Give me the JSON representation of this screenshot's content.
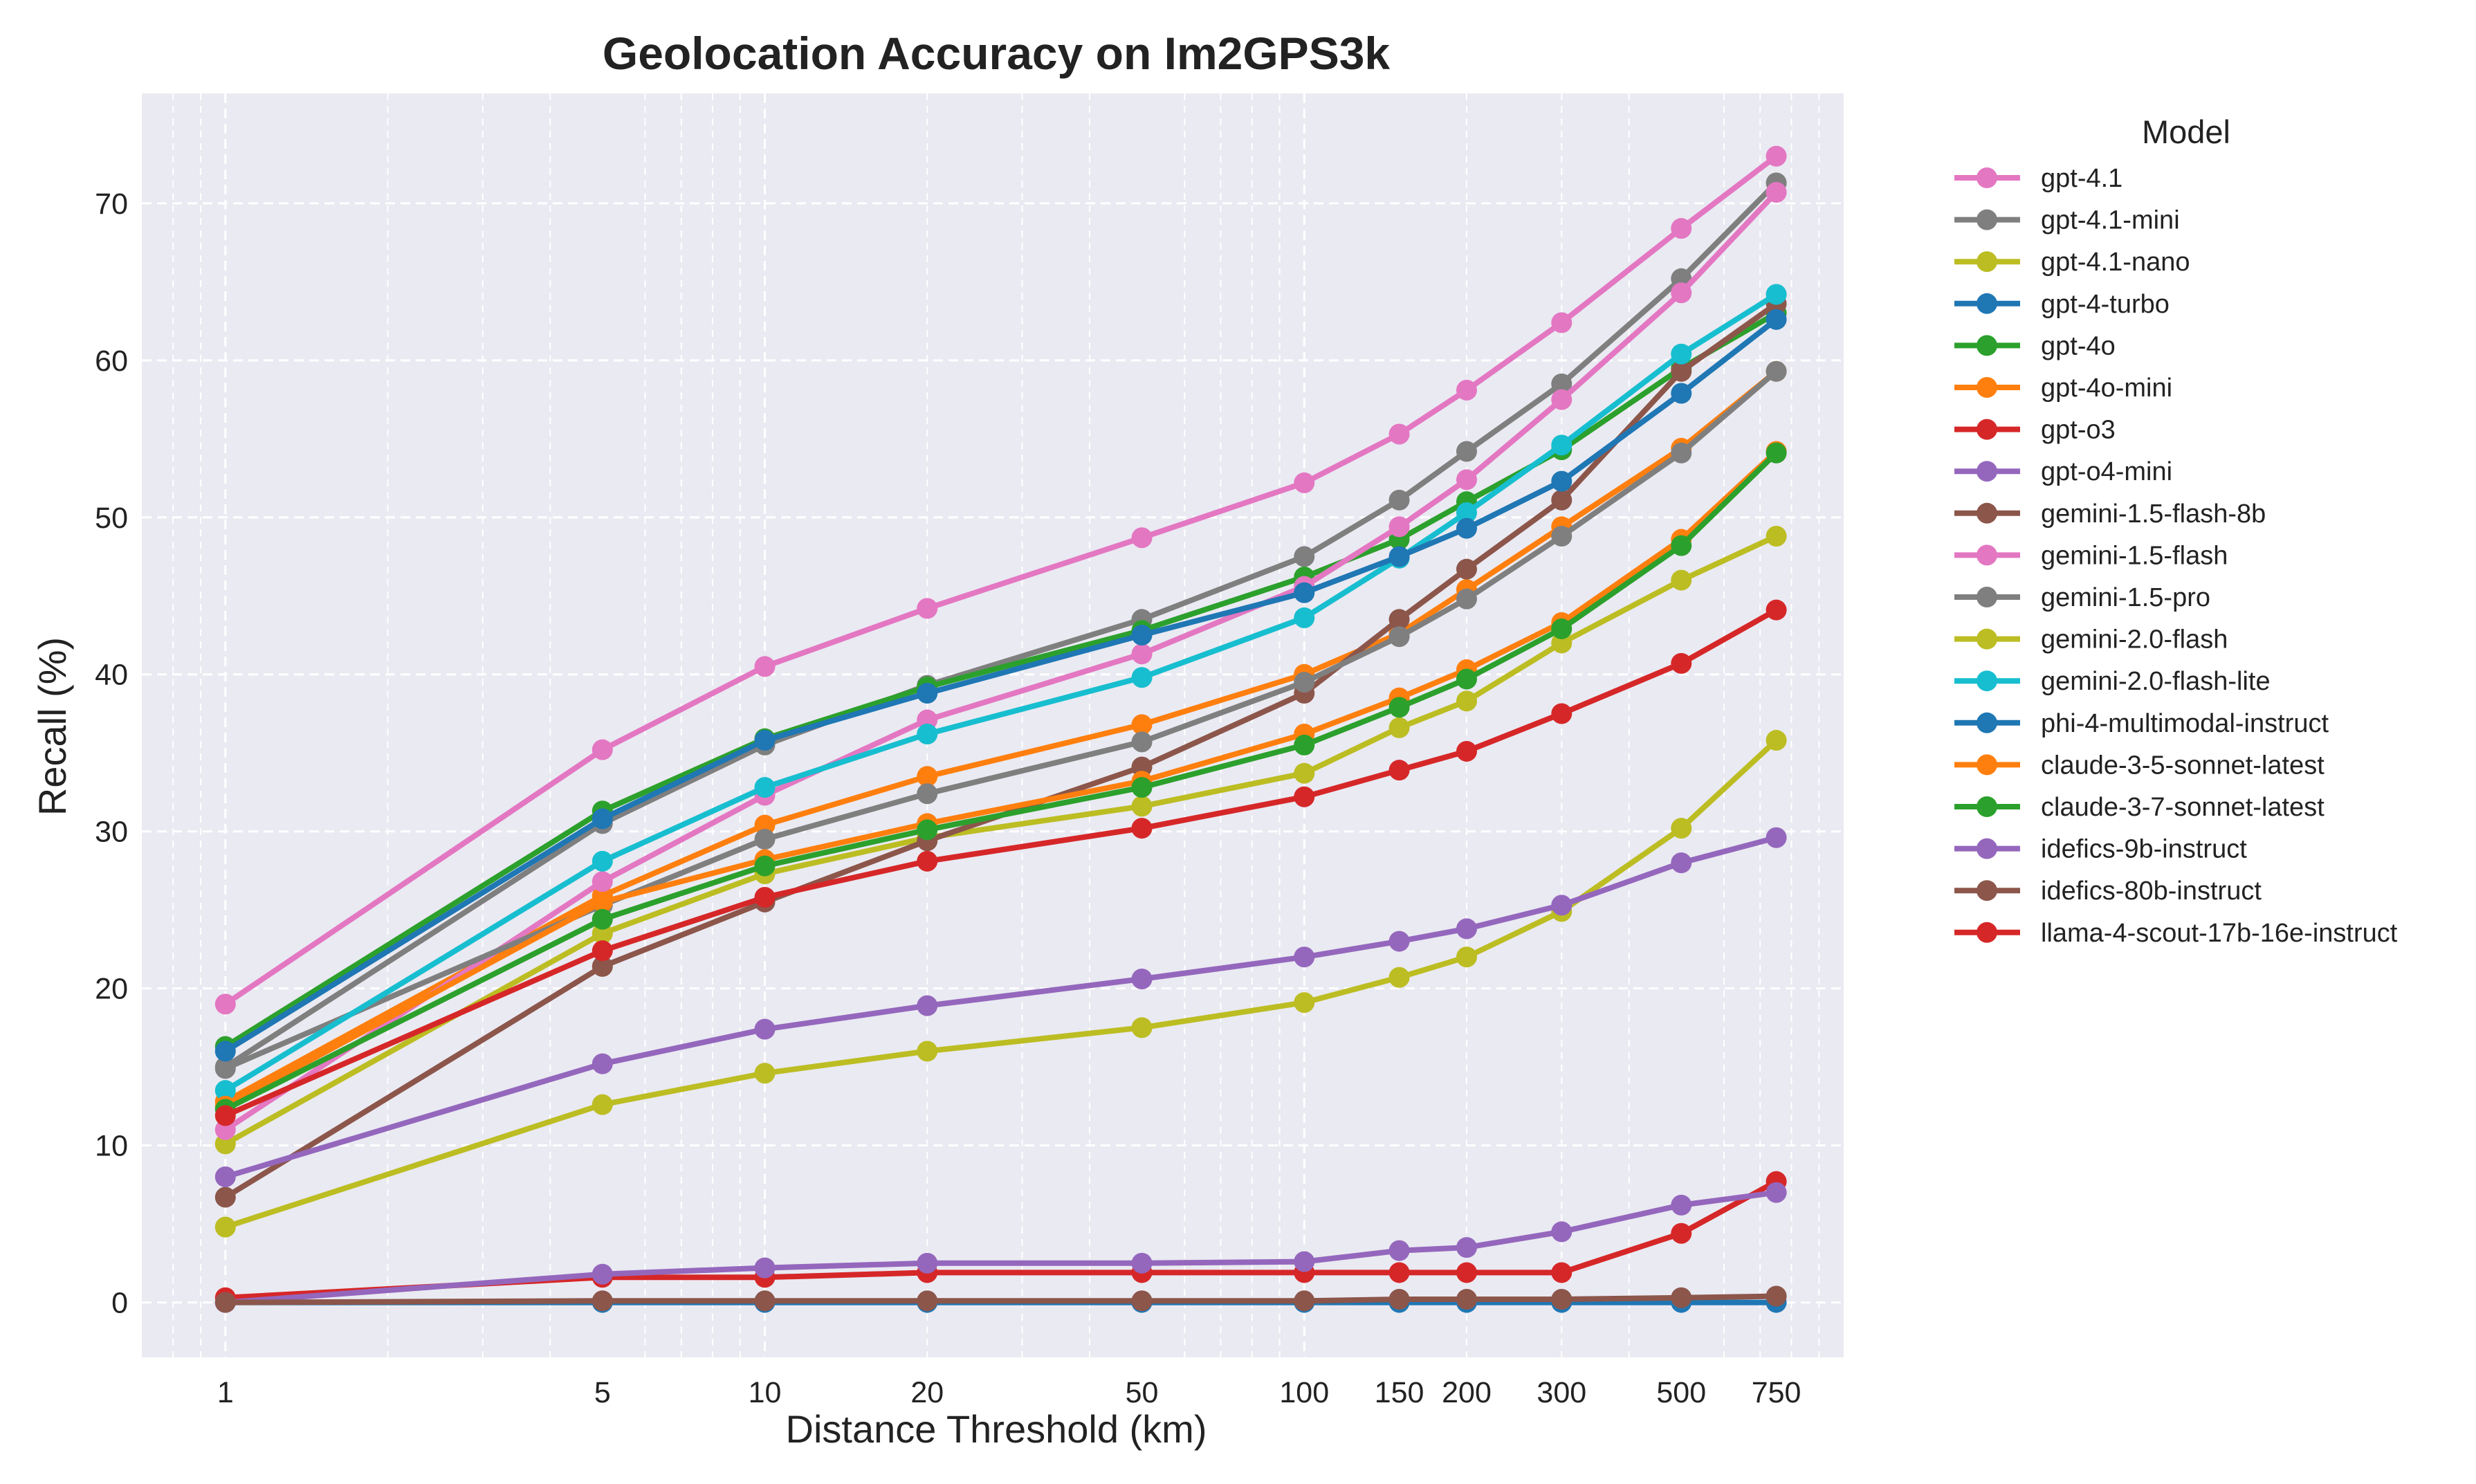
{
  "chart_data": {
    "type": "line",
    "title": "Geolocation Accuracy on Im2GPS3k",
    "xlabel": "Distance Threshold (km)",
    "ylabel": "Recall (%)",
    "x_scale": "log",
    "xlim": [
      0.7,
      1000
    ],
    "ylim": [
      -3.5,
      77
    ],
    "grid": true,
    "legend_title": "Model",
    "legend_position": "outside-right",
    "x": [
      1,
      5,
      10,
      20,
      50,
      100,
      150,
      200,
      300,
      500,
      750
    ],
    "x_tick_labels": [
      "1",
      "5",
      "10",
      "20",
      "50",
      "100",
      "150",
      "200",
      "300",
      "500",
      "750"
    ],
    "y_ticks": [
      0,
      10,
      20,
      30,
      40,
      50,
      60,
      70
    ],
    "y_tick_labels": [
      "0",
      "10",
      "20",
      "30",
      "40",
      "50",
      "60",
      "70"
    ],
    "series": [
      {
        "name": "gpt-4.1",
        "color": "#e377c2",
        "values": [
          19.0,
          35.2,
          40.5,
          44.2,
          48.7,
          52.2,
          55.3,
          58.1,
          62.4,
          68.4,
          73.0
        ]
      },
      {
        "name": "gpt-4.1-mini",
        "color": "#7f7f7f",
        "values": [
          15.0,
          30.5,
          35.5,
          39.3,
          43.5,
          47.5,
          51.1,
          54.2,
          58.5,
          65.2,
          71.3
        ]
      },
      {
        "name": "gpt-4.1-nano",
        "color": "#bcbd22",
        "values": [
          10.1,
          23.5,
          27.3,
          29.6,
          31.6,
          33.7,
          36.6,
          38.3,
          42.0,
          46.0,
          48.8
        ]
      },
      {
        "name": "gpt-4-turbo",
        "color": "#1f77b4",
        "values": [
          0.0,
          0.0,
          0.0,
          0.0,
          0.0,
          0.0,
          0.0,
          0.0,
          0.0,
          0.0,
          0.0
        ]
      },
      {
        "name": "gpt-4o",
        "color": "#2ca02c",
        "values": [
          16.3,
          31.3,
          35.9,
          39.2,
          42.8,
          46.2,
          48.6,
          51.0,
          54.3,
          59.5,
          63.0
        ]
      },
      {
        "name": "gpt-4o-mini",
        "color": "#ff7f0e",
        "values": [
          12.8,
          25.9,
          30.4,
          33.5,
          36.8,
          40.0,
          42.6,
          45.4,
          49.4,
          54.4,
          59.3
        ]
      },
      {
        "name": "gpt-o3",
        "color": "#d62728",
        "values": [
          0.3,
          1.6,
          1.6,
          1.9,
          1.9,
          1.9,
          1.9,
          1.9,
          1.9,
          4.4,
          7.7
        ]
      },
      {
        "name": "gpt-o4-mini",
        "color": "#9467bd",
        "values": [
          0.0,
          1.8,
          2.2,
          2.5,
          2.5,
          2.6,
          3.3,
          3.5,
          4.5,
          6.2,
          7.0
        ]
      },
      {
        "name": "gemini-1.5-flash-8b",
        "color": "#8c564b",
        "values": [
          6.7,
          21.4,
          25.5,
          29.4,
          34.1,
          38.8,
          43.5,
          46.7,
          51.1,
          59.3,
          63.6
        ]
      },
      {
        "name": "gemini-1.5-flash",
        "color": "#e377c2",
        "values": [
          11.0,
          26.8,
          32.3,
          37.1,
          41.3,
          45.6,
          49.4,
          52.4,
          57.5,
          64.3,
          70.7
        ]
      },
      {
        "name": "gemini-1.5-pro",
        "color": "#7f7f7f",
        "values": [
          14.9,
          25.3,
          29.5,
          32.4,
          35.7,
          39.5,
          42.4,
          44.8,
          48.8,
          54.1,
          59.3
        ]
      },
      {
        "name": "gemini-2.0-flash",
        "color": "#bcbd22",
        "values": [
          4.8,
          12.6,
          14.6,
          16.0,
          17.5,
          19.1,
          20.7,
          22.0,
          24.9,
          30.2,
          35.8
        ]
      },
      {
        "name": "gemini-2.0-flash-lite",
        "color": "#17becf",
        "values": [
          13.5,
          28.1,
          32.8,
          36.2,
          39.8,
          43.6,
          47.4,
          50.3,
          54.6,
          60.4,
          64.2
        ]
      },
      {
        "name": "phi-4-multimodal-instruct",
        "color": "#1f77b4",
        "values": [
          16.0,
          30.8,
          35.8,
          38.8,
          42.5,
          45.2,
          47.5,
          49.3,
          52.3,
          57.9,
          62.6
        ]
      },
      {
        "name": "claude-3-5-sonnet-latest",
        "color": "#ff7f0e",
        "values": [
          12.5,
          25.5,
          28.2,
          30.5,
          33.2,
          36.2,
          38.5,
          40.3,
          43.3,
          48.6,
          54.2
        ]
      },
      {
        "name": "claude-3-7-sonnet-latest",
        "color": "#2ca02c",
        "values": [
          12.3,
          24.4,
          27.8,
          30.1,
          32.8,
          35.5,
          37.9,
          39.7,
          42.9,
          48.2,
          54.1
        ]
      },
      {
        "name": "idefics-9b-instruct",
        "color": "#9467bd",
        "values": [
          8.0,
          15.2,
          17.4,
          18.9,
          20.6,
          22.0,
          23.0,
          23.8,
          25.3,
          28.0,
          29.6
        ]
      },
      {
        "name": "idefics-80b-instruct",
        "color": "#8c564b",
        "values": [
          0.0,
          0.1,
          0.1,
          0.1,
          0.1,
          0.1,
          0.2,
          0.2,
          0.2,
          0.3,
          0.4
        ]
      },
      {
        "name": "llama-4-scout-17b-16e-instruct",
        "color": "#d62728",
        "values": [
          11.9,
          22.4,
          25.8,
          28.1,
          30.2,
          32.2,
          33.9,
          35.1,
          37.5,
          40.7,
          44.1
        ]
      }
    ]
  }
}
